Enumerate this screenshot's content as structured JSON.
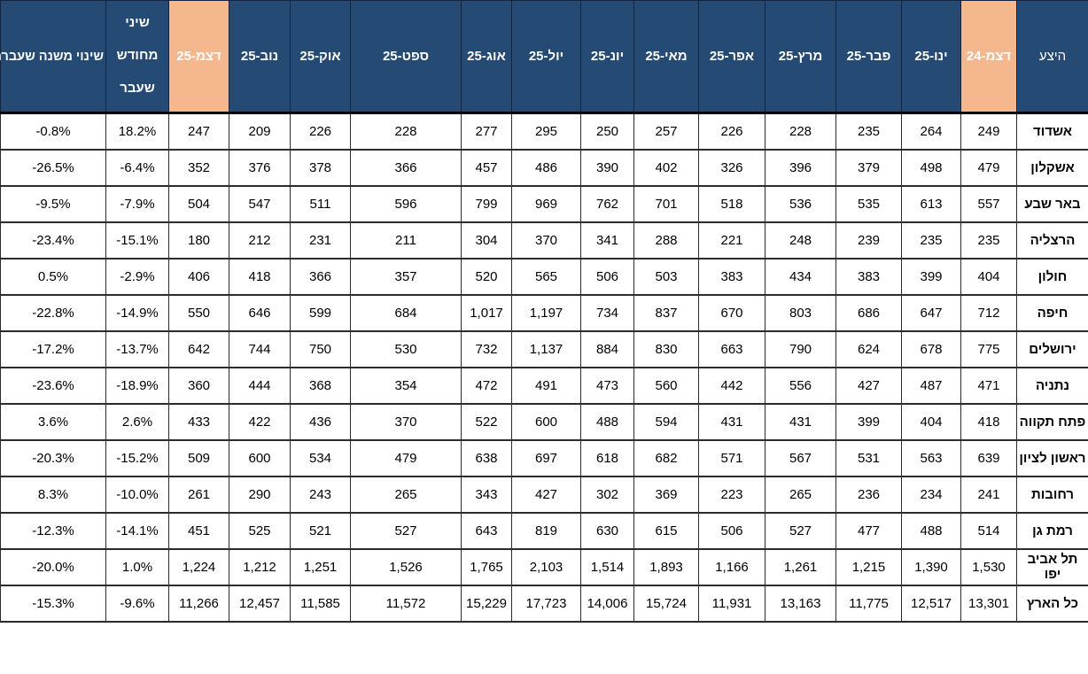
{
  "colors": {
    "header_bg": "#254a73",
    "highlight_bg": "#f5b78e",
    "header_text": "#ffffff",
    "body_text": "#000000",
    "grid_line": "#2b2b2b"
  },
  "chart_data": {
    "type": "table",
    "direction": "rtl",
    "layout": {
      "grid": true,
      "highlighted_columns": [
        "דצמ-24",
        "דצמ-25"
      ],
      "header_position": "top",
      "row_label_position": "right"
    },
    "columns": [
      {
        "label": "היצע",
        "kind": "row-label",
        "highlight": false,
        "style": "corner"
      },
      {
        "label": "דצמ-24",
        "highlight": true
      },
      {
        "label": "ינו-25",
        "highlight": false
      },
      {
        "label": "פבר-25",
        "highlight": false
      },
      {
        "label": "מרץ-25",
        "highlight": false
      },
      {
        "label": "אפר-25",
        "highlight": false
      },
      {
        "label": "מאי-25",
        "highlight": false
      },
      {
        "label": "יונ-25",
        "highlight": false
      },
      {
        "label": "יול-25",
        "highlight": false
      },
      {
        "label": "אוג-25",
        "highlight": false
      },
      {
        "label": "ספט-25",
        "highlight": false
      },
      {
        "label": "אוק-25",
        "highlight": false
      },
      {
        "label": "נוב-25",
        "highlight": false
      },
      {
        "label": "דצמ-25",
        "highlight": true
      },
      {
        "label": "שיני מחודש שעבר",
        "highlight": false,
        "style": "wrap"
      },
      {
        "label": "שינוי משנה שעברה",
        "highlight": false,
        "style": "nowrap"
      }
    ],
    "rows": [
      {
        "city": "אשדוד",
        "values": [
          "249",
          "264",
          "235",
          "228",
          "226",
          "257",
          "250",
          "295",
          "277",
          "228",
          "226",
          "209",
          "247",
          "18.2%",
          "-0.8%"
        ]
      },
      {
        "city": "אשקלון",
        "values": [
          "479",
          "498",
          "379",
          "396",
          "326",
          "402",
          "390",
          "486",
          "457",
          "366",
          "378",
          "376",
          "352",
          "-6.4%",
          "-26.5%"
        ]
      },
      {
        "city": "באר שבע",
        "values": [
          "557",
          "613",
          "535",
          "536",
          "518",
          "701",
          "762",
          "969",
          "799",
          "596",
          "511",
          "547",
          "504",
          "-7.9%",
          "-9.5%"
        ]
      },
      {
        "city": "הרצליה",
        "values": [
          "235",
          "235",
          "239",
          "248",
          "221",
          "288",
          "341",
          "370",
          "304",
          "211",
          "231",
          "212",
          "180",
          "-15.1%",
          "-23.4%"
        ]
      },
      {
        "city": "חולון",
        "values": [
          "404",
          "399",
          "383",
          "434",
          "383",
          "503",
          "506",
          "565",
          "520",
          "357",
          "366",
          "418",
          "406",
          "-2.9%",
          "0.5%"
        ]
      },
      {
        "city": "חיפה",
        "values": [
          "712",
          "647",
          "686",
          "803",
          "670",
          "837",
          "734",
          "1,197",
          "1,017",
          "684",
          "599",
          "646",
          "550",
          "-14.9%",
          "-22.8%"
        ]
      },
      {
        "city": "ירושלים",
        "values": [
          "775",
          "678",
          "624",
          "790",
          "663",
          "830",
          "884",
          "1,137",
          "732",
          "530",
          "750",
          "744",
          "642",
          "-13.7%",
          "-17.2%"
        ]
      },
      {
        "city": "נתניה",
        "values": [
          "471",
          "487",
          "427",
          "556",
          "442",
          "560",
          "473",
          "491",
          "472",
          "354",
          "368",
          "444",
          "360",
          "-18.9%",
          "-23.6%"
        ]
      },
      {
        "city": "פתח תקווה",
        "values": [
          "418",
          "404",
          "399",
          "431",
          "431",
          "594",
          "488",
          "600",
          "522",
          "370",
          "436",
          "422",
          "433",
          "2.6%",
          "3.6%"
        ]
      },
      {
        "city": "ראשון לציון",
        "values": [
          "639",
          "563",
          "531",
          "567",
          "571",
          "682",
          "618",
          "697",
          "638",
          "479",
          "534",
          "600",
          "509",
          "-15.2%",
          "-20.3%"
        ]
      },
      {
        "city": "רחובות",
        "values": [
          "241",
          "234",
          "236",
          "265",
          "223",
          "369",
          "302",
          "427",
          "343",
          "265",
          "243",
          "290",
          "261",
          "-10.0%",
          "8.3%"
        ]
      },
      {
        "city": "רמת גן",
        "values": [
          "514",
          "488",
          "477",
          "527",
          "506",
          "615",
          "630",
          "819",
          "643",
          "527",
          "521",
          "525",
          "451",
          "-14.1%",
          "-12.3%"
        ]
      },
      {
        "city": "תל אביב יפו",
        "values": [
          "1,530",
          "1,390",
          "1,215",
          "1,261",
          "1,166",
          "1,893",
          "1,514",
          "2,103",
          "1,765",
          "1,526",
          "1,251",
          "1,212",
          "1,224",
          "1.0%",
          "-20.0%"
        ]
      },
      {
        "city": "כל הארץ",
        "values": [
          "13,301",
          "12,517",
          "11,775",
          "13,163",
          "11,931",
          "15,724",
          "14,006",
          "17,723",
          "15,229",
          "11,572",
          "11,585",
          "12,457",
          "11,266",
          "-9.6%",
          "-15.3%"
        ]
      }
    ]
  }
}
